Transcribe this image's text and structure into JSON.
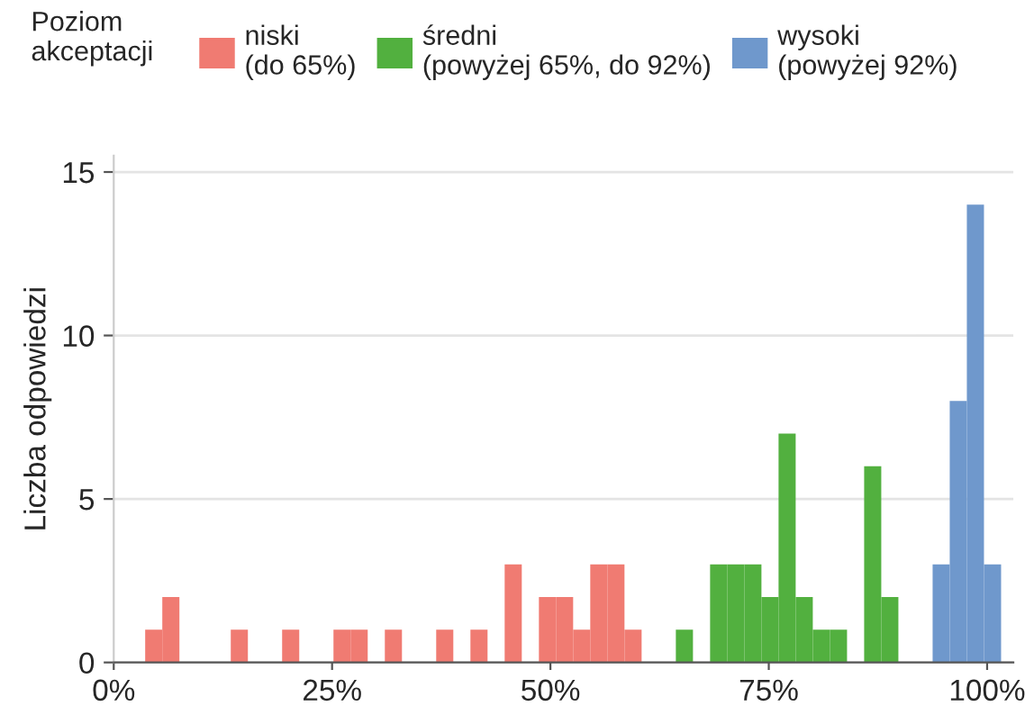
{
  "chart_data": {
    "type": "histogram",
    "legend_title": "Poziom akceptacji",
    "ylabel": "Liczba odpowiedzi",
    "bins": [
      3.6,
      5.56,
      7.52,
      9.48,
      11.44,
      13.4,
      15.36,
      17.32,
      19.28,
      21.24,
      23.2,
      25.16,
      27.12,
      29.08,
      31.04,
      33.0,
      34.96,
      36.92,
      38.88,
      40.84,
      42.8,
      44.76,
      46.72,
      48.68,
      50.64,
      52.6,
      54.56,
      56.52,
      58.48,
      60.44,
      62.4,
      64.36,
      66.32,
      68.28,
      70.24,
      72.2,
      74.16,
      76.12,
      78.08,
      80.04,
      82.0,
      83.96,
      85.92,
      87.88,
      89.84,
      91.8,
      93.76,
      95.72,
      97.68,
      99.64,
      101.6
    ],
    "series": [
      {
        "name": "niski\n(do 65%)",
        "color": "#f07b72",
        "values": [
          1,
          2,
          0,
          0,
          0,
          1,
          0,
          0,
          1,
          0,
          0,
          1,
          1,
          0,
          1,
          0,
          0,
          1,
          0,
          1,
          0,
          3,
          0,
          2,
          2,
          1,
          3,
          3,
          1,
          0,
          0,
          null,
          null,
          null,
          null,
          null,
          null,
          null,
          null,
          null,
          null,
          null,
          null,
          null,
          null,
          null,
          null,
          null,
          null,
          null
        ]
      },
      {
        "name": "średni\n(powyżej 65%, do 92%)",
        "color": "#52b03f",
        "values": [
          null,
          null,
          null,
          null,
          null,
          null,
          null,
          null,
          null,
          null,
          null,
          null,
          null,
          null,
          null,
          null,
          null,
          null,
          null,
          null,
          null,
          null,
          null,
          null,
          null,
          null,
          null,
          null,
          null,
          null,
          null,
          1,
          0,
          3,
          3,
          3,
          2,
          7,
          2,
          1,
          1,
          0,
          6,
          2,
          0,
          0,
          null,
          null,
          null,
          null
        ]
      },
      {
        "name": "wysoki\n(powyżej 92%)",
        "color": "#6f98cc",
        "values": [
          null,
          null,
          null,
          null,
          null,
          null,
          null,
          null,
          null,
          null,
          null,
          null,
          null,
          null,
          null,
          null,
          null,
          null,
          null,
          null,
          null,
          null,
          null,
          null,
          null,
          null,
          null,
          null,
          null,
          null,
          null,
          null,
          null,
          null,
          null,
          null,
          null,
          null,
          null,
          null,
          null,
          null,
          null,
          null,
          null,
          null,
          3,
          8,
          14,
          3
        ]
      }
    ],
    "xlim": [
      0,
      103
    ],
    "xticks": [
      {
        "value": 0,
        "label": "0%"
      },
      {
        "value": 25,
        "label": "25%"
      },
      {
        "value": 50,
        "label": "50%"
      },
      {
        "value": 75,
        "label": "75%"
      },
      {
        "value": 100,
        "label": "100%"
      }
    ],
    "ylim": [
      0,
      15.5
    ],
    "yticks": [
      0,
      5,
      10,
      15
    ],
    "grid": "y",
    "legend": "top"
  }
}
